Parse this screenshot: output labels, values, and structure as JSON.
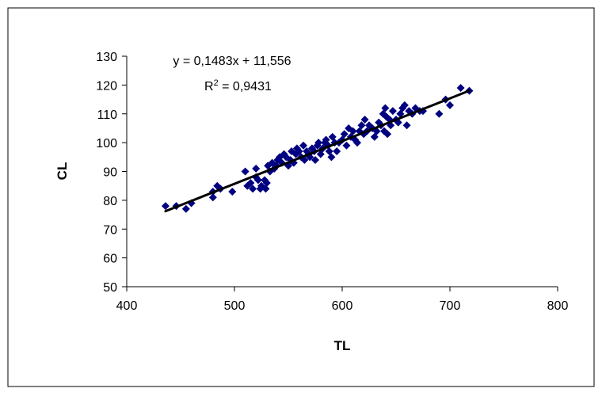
{
  "chart_data": {
    "type": "scatter",
    "title": "",
    "xlabel": "TL",
    "ylabel": "CL",
    "xlim": [
      400,
      800
    ],
    "ylim": [
      50,
      130
    ],
    "xticks": [
      400,
      500,
      600,
      700,
      800
    ],
    "yticks": [
      50,
      60,
      70,
      80,
      90,
      100,
      110,
      120,
      130
    ],
    "xtick_labels": [
      "400",
      "500",
      "600",
      "700",
      "800"
    ],
    "ytick_labels": [
      "50",
      "60",
      "70",
      "80",
      "90",
      "100",
      "110",
      "120",
      "130"
    ],
    "grid": false,
    "legend": "none",
    "marker": "diamond",
    "colors": {
      "points": "#000080",
      "trendline": "#000000",
      "frame": "#000000"
    },
    "annotations": {
      "equation": "y = 0,1483x + 11,556",
      "r2_prefix": "R",
      "r2_sup": "2",
      "r2_suffix": " = 0,9431"
    },
    "trendline": {
      "slope": 0.1483,
      "intercept": 11.556,
      "x_start": 436,
      "x_end": 718
    },
    "series": [
      {
        "points": [
          [
            436,
            78
          ],
          [
            446,
            78
          ],
          [
            455,
            77
          ],
          [
            460,
            79
          ],
          [
            480,
            83
          ],
          [
            480,
            81
          ],
          [
            484,
            85
          ],
          [
            487,
            84
          ],
          [
            498,
            83
          ],
          [
            510,
            90
          ],
          [
            512,
            85
          ],
          [
            515,
            86
          ],
          [
            517,
            84
          ],
          [
            520,
            88
          ],
          [
            520,
            91
          ],
          [
            522,
            87
          ],
          [
            524,
            84
          ],
          [
            525,
            85
          ],
          [
            528,
            87
          ],
          [
            529,
            84
          ],
          [
            530,
            86
          ],
          [
            531,
            92
          ],
          [
            533,
            90
          ],
          [
            535,
            93
          ],
          [
            537,
            91
          ],
          [
            539,
            92
          ],
          [
            540,
            94
          ],
          [
            542,
            95
          ],
          [
            544,
            93
          ],
          [
            546,
            96
          ],
          [
            548,
            95
          ],
          [
            550,
            92
          ],
          [
            552,
            94
          ],
          [
            553,
            97
          ],
          [
            555,
            93
          ],
          [
            557,
            96
          ],
          [
            558,
            98
          ],
          [
            560,
            97
          ],
          [
            562,
            95
          ],
          [
            564,
            99
          ],
          [
            565,
            94
          ],
          [
            567,
            97
          ],
          [
            569,
            96
          ],
          [
            570,
            95
          ],
          [
            572,
            98
          ],
          [
            574,
            97
          ],
          [
            575,
            94
          ],
          [
            577,
            99
          ],
          [
            578,
            100
          ],
          [
            580,
            96
          ],
          [
            582,
            98
          ],
          [
            584,
            100
          ],
          [
            585,
            101
          ],
          [
            587,
            99
          ],
          [
            588,
            97
          ],
          [
            590,
            95
          ],
          [
            591,
            102
          ],
          [
            593,
            100
          ],
          [
            595,
            97
          ],
          [
            597,
            100
          ],
          [
            600,
            101
          ],
          [
            602,
            103
          ],
          [
            604,
            99
          ],
          [
            606,
            105
          ],
          [
            608,
            102
          ],
          [
            610,
            104
          ],
          [
            612,
            101
          ],
          [
            614,
            100
          ],
          [
            616,
            104
          ],
          [
            618,
            106
          ],
          [
            620,
            103
          ],
          [
            621,
            108
          ],
          [
            623,
            104
          ],
          [
            625,
            106
          ],
          [
            628,
            105
          ],
          [
            630,
            102
          ],
          [
            632,
            104
          ],
          [
            634,
            107
          ],
          [
            636,
            106
          ],
          [
            638,
            110
          ],
          [
            639,
            104
          ],
          [
            640,
            112
          ],
          [
            641,
            109
          ],
          [
            642,
            103
          ],
          [
            644,
            108
          ],
          [
            645,
            106
          ],
          [
            647,
            111
          ],
          [
            650,
            108
          ],
          [
            652,
            107
          ],
          [
            654,
            110
          ],
          [
            656,
            112
          ],
          [
            658,
            113
          ],
          [
            660,
            106
          ],
          [
            662,
            111
          ],
          [
            665,
            110
          ],
          [
            668,
            112
          ],
          [
            672,
            111
          ],
          [
            675,
            111
          ],
          [
            690,
            110
          ],
          [
            696,
            115
          ],
          [
            700,
            113
          ],
          [
            710,
            119
          ],
          [
            718,
            118
          ]
        ]
      }
    ]
  }
}
